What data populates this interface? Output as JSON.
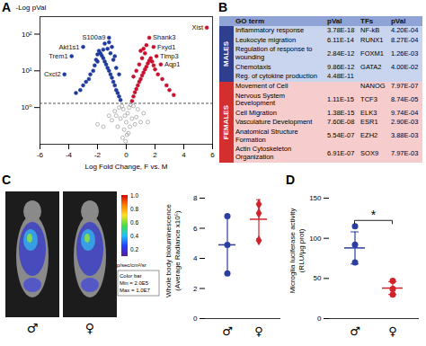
{
  "panel_labels": [
    "A",
    "B",
    "C",
    "D"
  ],
  "chart_data": [
    {
      "type": "scatter",
      "xlabel": "Log Fold Change, F vs. M",
      "ylabel": "-Log pVal",
      "log": "y",
      "xlim": [
        -6,
        6
      ],
      "xticks": [
        -6,
        -4,
        -2,
        0,
        2,
        4,
        6
      ],
      "ylim": [
        0.1,
        300
      ],
      "yticks": [
        {
          "value": 1,
          "label": "10⁰"
        },
        {
          "value": 10,
          "label": "10¹"
        },
        {
          "value": 100,
          "label": "10²"
        }
      ],
      "threshold": 1.3,
      "series": [
        {
          "color": "#1f3a9e",
          "marker": "circle",
          "x": [
            -0.4,
            -0.5,
            -0.6,
            -0.7,
            -0.8,
            -0.9,
            -1.0,
            -1.1,
            -1.2,
            -1.3,
            -1.4,
            -1.5,
            -1.6,
            -1.7,
            -1.8,
            -1.9,
            -2.0,
            -2.1,
            -2.2,
            -2.3,
            -2.5,
            -2.6,
            -2.8,
            -3.0,
            -3.2,
            -3.5,
            -0.5,
            -0.7,
            -0.9,
            -1.1,
            -1.3,
            -1.5,
            -1.0,
            -1.2,
            -0.8,
            -1.6,
            -2.0,
            -3.0,
            -1.2,
            -3.8,
            -4.3
          ],
          "values": [
            1.6,
            2.0,
            2.5,
            3.0,
            4.0,
            5.0,
            6.5,
            8.0,
            10,
            12,
            15,
            18,
            22,
            26,
            30,
            35,
            28,
            20,
            14,
            10,
            8,
            6,
            5,
            4,
            3,
            2.5,
            8,
            12,
            20,
            30,
            40,
            55,
            45,
            60,
            25,
            38,
            18,
            45,
            80,
            25,
            8
          ]
        },
        {
          "color": "#c8102e",
          "marker": "circle",
          "x": [
            0.4,
            0.5,
            0.6,
            0.7,
            0.8,
            0.9,
            1.0,
            1.1,
            1.2,
            1.3,
            1.4,
            1.5,
            1.6,
            1.7,
            1.8,
            1.9,
            2.0,
            2.2,
            2.5,
            2.8,
            3.0,
            3.3,
            0.5,
            0.7,
            0.9,
            1.1,
            1.3,
            1.0,
            1.2,
            1.4,
            1.6,
            1.9,
            2.1,
            2.4,
            5.6
          ],
          "values": [
            1.5,
            2.0,
            2.6,
            3.2,
            4.0,
            5.0,
            6.0,
            7.5,
            9,
            11,
            13,
            16,
            19,
            22,
            18,
            14,
            11,
            8,
            6,
            4,
            3,
            2.2,
            7,
            10,
            15,
            22,
            30,
            35,
            40,
            50,
            80,
            45,
            25,
            15,
            150
          ]
        },
        {
          "color": "#9a9a9a",
          "marker": "open circle",
          "x": [
            -0.3,
            -0.2,
            -0.1,
            0,
            0.1,
            0.2,
            0.3,
            -0.5,
            0.5,
            -0.8,
            0.8,
            -1.2,
            1.2,
            -0.4,
            0.4,
            -0.6,
            0.6,
            -0.15,
            0.15,
            -1.0,
            1.0,
            -0.25,
            0.25,
            -0.05,
            0.05,
            -1.6,
            1.5,
            -0.7,
            0.7,
            -2.0
          ],
          "values": [
            1.1,
            0.9,
            0.6,
            0.4,
            0.7,
            1.0,
            1.2,
            1.0,
            1.1,
            0.8,
            0.9,
            0.6,
            0.7,
            0.5,
            0.5,
            0.3,
            0.35,
            0.25,
            0.2,
            0.45,
            0.4,
            0.15,
            0.3,
            0.12,
            0.18,
            0.3,
            0.4,
            0.6,
            0.55,
            0.35
          ]
        }
      ],
      "annotations": [
        {
          "text": "Akt1s1",
          "x": -3.0,
          "y": 45
        },
        {
          "text": "S100a9",
          "x": -1.2,
          "y": 80
        },
        {
          "text": "Trem1",
          "x": -3.8,
          "y": 25
        },
        {
          "text": "Cxcl2",
          "x": -4.3,
          "y": 8
        },
        {
          "text": "Shank3",
          "x": 1.6,
          "y": 80
        },
        {
          "text": "Fxyd1",
          "x": 1.9,
          "y": 45
        },
        {
          "text": "Timp3",
          "x": 2.1,
          "y": 25
        },
        {
          "text": "Aqp1",
          "x": 2.4,
          "y": 15
        },
        {
          "text": "Xist",
          "x": 5.6,
          "y": 150
        }
      ]
    },
    {
      "type": "scatter",
      "ylabel": [
        "Whole body bioluminescence",
        "(Average Radiance x10⁵)"
      ],
      "ylim": [
        0,
        8
      ],
      "yticks": [
        0,
        2,
        4,
        6,
        8
      ],
      "series": [
        {
          "name": "♂",
          "color": "#2b3f9e",
          "marker": "circle",
          "values": [
            3.0,
            4.9,
            6.8
          ],
          "mean": 4.9,
          "sd": 1.9
        },
        {
          "name": "♀",
          "color": "#d2232a",
          "marker": "diamond",
          "values": [
            5.2,
            7.0,
            7.6
          ],
          "mean": 6.6,
          "sd": 1.3
        }
      ]
    },
    {
      "type": "scatter",
      "ylabel": [
        "Microglia luciferase activity",
        "(RLU/µg prot)"
      ],
      "ylim": [
        0,
        150
      ],
      "yticks": [
        0,
        50,
        100,
        150
      ],
      "annotation": "*",
      "series": [
        {
          "name": "♂",
          "color": "#2b3f9e",
          "marker": "circle",
          "values": [
            70,
            92,
            115
          ],
          "mean": 88,
          "sd": 20
        },
        {
          "name": "♀",
          "color": "#d2232a",
          "marker": "circle",
          "values": [
            30,
            37,
            47
          ],
          "mean": 38,
          "sd": 8
        }
      ]
    }
  ],
  "table": {
    "columns": [
      "GO term",
      "pVal",
      "TFs",
      "pVal"
    ],
    "sections": [
      {
        "label": "MALES",
        "color": "#2e3f8f",
        "row_color": "#c9d5ee",
        "go_terms": [
          {
            "term": "Inflammatory response",
            "pVal": "3.78E-18"
          },
          {
            "term": "Leukocyte migration",
            "pVal": "6.11E-14"
          },
          {
            "term": "Regulation of response to wounding",
            "pVal": "2.84E-12"
          },
          {
            "term": "Chemotaxis",
            "pVal": "9.86E-12"
          },
          {
            "term": "Reg. of cytokine production",
            "pVal": "4.48E-11"
          }
        ],
        "tfs": [
          {
            "tf": "NF-kB",
            "pVal": "4.20E-04"
          },
          {
            "tf": "RUNX1",
            "pVal": "8.27E-04"
          },
          {
            "tf": "FOXM1",
            "pVal": "1.26E-03"
          },
          {
            "tf": "GATA2",
            "pVal": "4.00E-02"
          }
        ]
      },
      {
        "label": "FEMALES",
        "color": "#d32f2f",
        "row_color": "#f6cccc",
        "go_terms": [
          {
            "term": "Movement of Cell",
            "pVal": null
          },
          {
            "term": "Nervous System Development",
            "pVal": "1.11E-15"
          },
          {
            "term": "Cell Migration",
            "pVal": "1.38E-15"
          },
          {
            "term": "Vasculature Development",
            "pVal": "7.60E-08"
          },
          {
            "term": "Anatomical Structure Formation",
            "pVal": "5.54E-07"
          },
          {
            "term": "Actin Cytoskeleton Organization",
            "pVal": "6.91E-07"
          }
        ],
        "tfs": [
          {
            "tf": "NANOG",
            "pVal": "7.97E-07"
          },
          {
            "tf": "TCF3",
            "pVal": "8.74E-05"
          },
          {
            "tf": "ELK3",
            "pVal": "9.74E-04"
          },
          {
            "tf": "ESR1",
            "pVal": "2.90E-03"
          },
          {
            "tf": "EZH2",
            "pVal": "3.88E-03"
          },
          {
            "tf": "SOX9",
            "pVal": "7.97E-03"
          }
        ]
      }
    ]
  },
  "image": {
    "sexes": [
      "♂",
      "♀"
    ],
    "colorbar": {
      "range": [
        0.1,
        1.0
      ],
      "ticks": [
        {
          "value": 1,
          "label": "1.0"
        },
        0.8,
        0.6,
        0.4,
        0.2
      ],
      "unit": "p/sec/cm²/sr",
      "caption": [
        "Color bar",
        "Min = 2.0E5",
        "Max = 1.0E7"
      ]
    }
  }
}
